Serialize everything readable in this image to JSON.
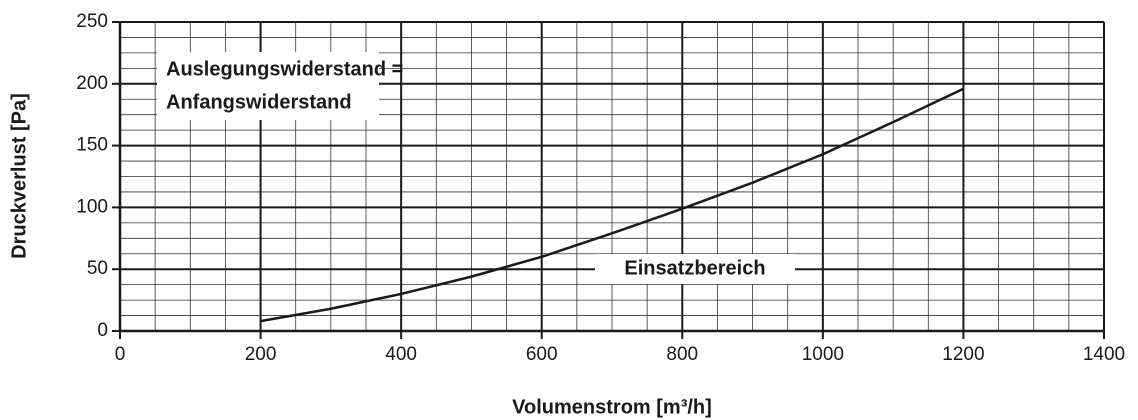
{
  "chart_data": {
    "type": "line",
    "xlabel": "Volumenstrom [m³/h]",
    "ylabel": "Druckverlust [Pa]",
    "annotations": [
      "Auslegungswiderstand =",
      "Anfangswiderstand",
      "Einsatzbereich"
    ],
    "x": [
      200,
      300,
      400,
      500,
      600,
      700,
      800,
      900,
      1000,
      1100,
      1200
    ],
    "series": [
      {
        "color": "#1a1a1a",
        "values": [
          8,
          18,
          30,
          44,
          60,
          79,
          99,
          120,
          143,
          169,
          196
        ]
      }
    ],
    "xlim": [
      0,
      1400
    ],
    "xticks": [
      0,
      200,
      400,
      600,
      800,
      1000,
      1200,
      1400
    ],
    "ylim": [
      0,
      250
    ],
    "yticks": [
      0,
      50,
      100,
      150,
      200,
      250
    ],
    "grid": true,
    "minor_grid": {
      "x": 50,
      "y": 12.5
    }
  }
}
